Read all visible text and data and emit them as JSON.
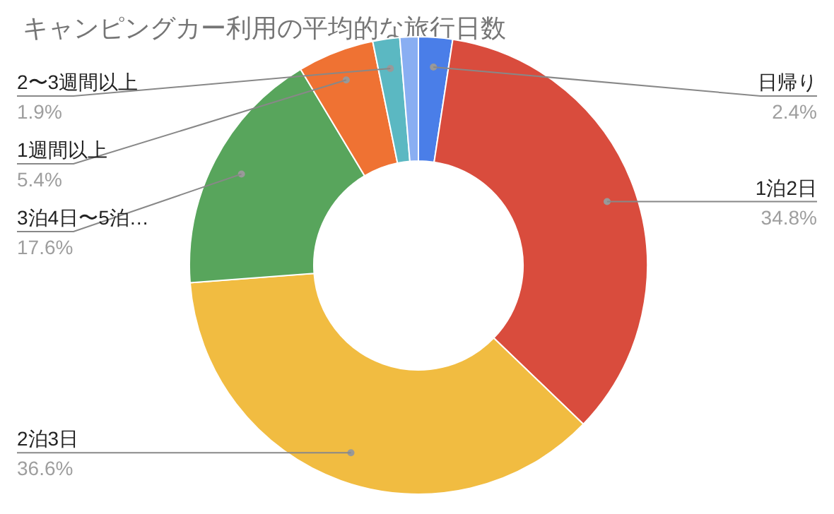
{
  "chart_data": {
    "type": "donut",
    "title": "キャンピングカー利用の平均的な旅行日数",
    "categories": [
      "日帰り",
      "1泊2日",
      "2泊3日",
      "3泊4日〜5泊…",
      "1週間以上",
      "2〜3週間以上",
      null
    ],
    "values": [
      2.4,
      34.8,
      36.6,
      17.6,
      5.4,
      1.9,
      1.3
    ],
    "value_labels": [
      "2.4%",
      "34.8%",
      "36.6%",
      "17.6%",
      "5.4%",
      "1.9%",
      null
    ],
    "colors": [
      "#4a7ee8",
      "#d94c3d",
      "#f1bc41",
      "#58a55c",
      "#ef7233",
      "#5bb8c2",
      "#89aef2"
    ]
  }
}
